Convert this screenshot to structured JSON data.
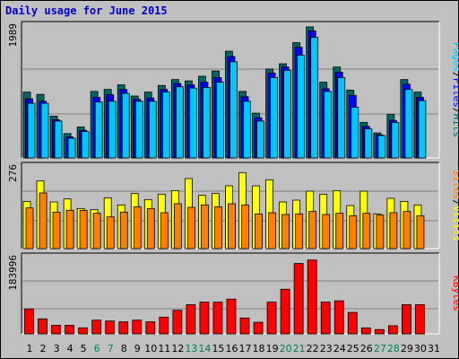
{
  "title": "Daily usage for June 2015",
  "colors": {
    "pages": "#00c8ff",
    "files": "#0000ff",
    "hits": "#006666",
    "sites": "#ff8000",
    "visits": "#ffff00",
    "kbytes": "#ff0000",
    "weekend_label": "#00805c",
    "weekday_label": "#000000"
  },
  "chart_data": [
    {
      "type": "bar",
      "panel": "top",
      "max_label": "1989",
      "max": 1989,
      "series": [
        {
          "name": "Hits",
          "values": [
            1000,
            965,
            635,
            370,
            470,
            1010,
            1040,
            1110,
            940,
            1000,
            1100,
            1190,
            1170,
            1240,
            1320,
            1620,
            1010,
            680,
            1350,
            1430,
            1750,
            1989,
            1150,
            1380,
            1030,
            540,
            380,
            660,
            1190,
            1000,
            0
          ]
        },
        {
          "name": "Files",
          "values": [
            900,
            860,
            580,
            320,
            420,
            920,
            960,
            1040,
            890,
            910,
            1040,
            1130,
            1110,
            1150,
            1220,
            1540,
            930,
            610,
            1290,
            1380,
            1680,
            1930,
            1050,
            1300,
            950,
            480,
            350,
            570,
            1120,
            920,
            0
          ]
        },
        {
          "name": "Pages",
          "values": [
            830,
            830,
            560,
            300,
            400,
            850,
            860,
            980,
            860,
            860,
            1000,
            1080,
            1060,
            1070,
            1150,
            1460,
            860,
            560,
            1220,
            1330,
            1560,
            1830,
            1010,
            1220,
            770,
            440,
            340,
            540,
            1040,
            870,
            0
          ]
        }
      ],
      "axis_label": [
        "Pages",
        "Files",
        "Hits"
      ]
    },
    {
      "type": "bar",
      "panel": "middle",
      "max_label": "276",
      "max": 276,
      "series": [
        {
          "name": "Visits",
          "values": [
            158,
            226,
            156,
            166,
            134,
            130,
            170,
            146,
            184,
            164,
            182,
            194,
            234,
            178,
            184,
            210,
            254,
            210,
            230,
            156,
            162,
            192,
            182,
            194,
            144,
            192,
            116,
            168,
            158,
            146,
            0
          ]
        },
        {
          "name": "Sites",
          "values": [
            136,
            186,
            122,
            128,
            128,
            118,
            106,
            122,
            140,
            134,
            120,
            150,
            138,
            146,
            140,
            150,
            146,
            116,
            120,
            114,
            116,
            124,
            114,
            118,
            110,
            118,
            112,
            120,
            124,
            110,
            0
          ]
        }
      ],
      "axis_label": [
        "Sites",
        "Visits"
      ]
    },
    {
      "type": "bar",
      "panel": "bottom",
      "max_label": "183996",
      "max": 183996,
      "series": [
        {
          "name": "KBytes",
          "values": [
            58000,
            35000,
            20000,
            20000,
            14000,
            32000,
            30000,
            28000,
            32000,
            28000,
            39000,
            55000,
            68000,
            74000,
            74000,
            81000,
            37000,
            27000,
            74000,
            104000,
            164000,
            172000,
            74000,
            77000,
            50000,
            14000,
            10000,
            19000,
            68000,
            68000,
            0
          ]
        }
      ],
      "axis_label": [
        "KBytes"
      ]
    }
  ],
  "days": [
    "1",
    "2",
    "3",
    "4",
    "5",
    "6",
    "7",
    "8",
    "9",
    "10",
    "11",
    "12",
    "13",
    "14",
    "15",
    "16",
    "17",
    "18",
    "19",
    "20",
    "21",
    "22",
    "23",
    "24",
    "25",
    "26",
    "27",
    "28",
    "29",
    "30",
    "31"
  ],
  "weekend_days": [
    6,
    7,
    13,
    14,
    20,
    21,
    27,
    28
  ]
}
